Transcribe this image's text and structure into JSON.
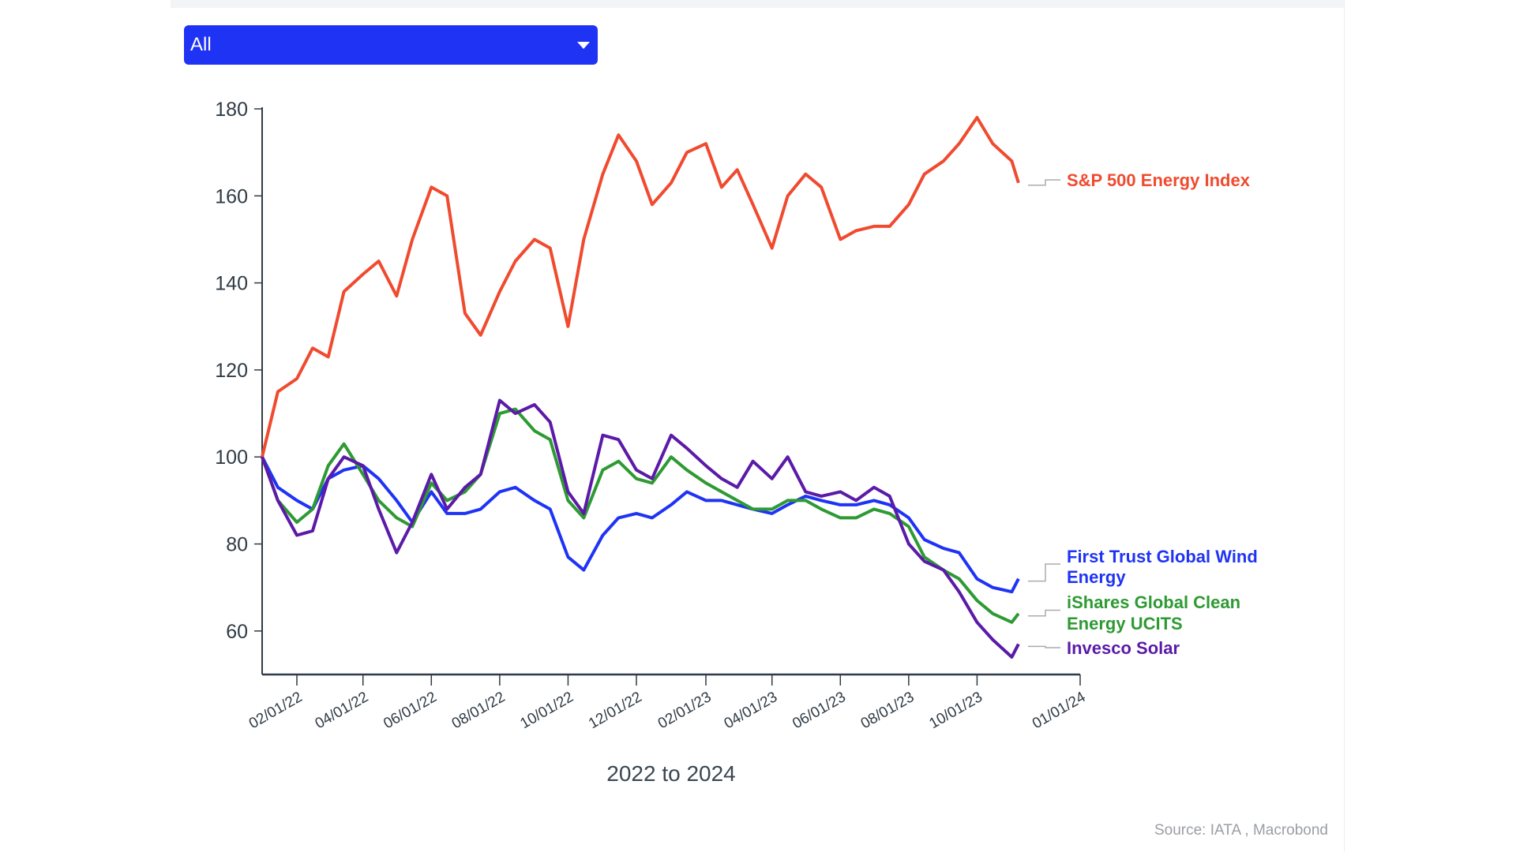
{
  "filter": {
    "selected": "All",
    "icon": "caret-down-icon"
  },
  "footer": {
    "source": "Source: IATA , Macrobond"
  },
  "chart_data": {
    "type": "line",
    "title": "",
    "xlabel": "2022 to 2024",
    "ylabel": "",
    "ylim": [
      50,
      180
    ],
    "yticks": [
      60,
      80,
      100,
      120,
      140,
      160,
      180
    ],
    "xlim": [
      "2022-01-01",
      "2024-01-01"
    ],
    "xticks": [
      "02/01/22",
      "04/01/22",
      "06/01/22",
      "08/01/22",
      "10/01/22",
      "12/01/22",
      "02/01/23",
      "04/01/23",
      "06/01/23",
      "08/01/23",
      "10/01/23",
      "01/01/24"
    ],
    "xtick_dates": [
      "2022-02-01",
      "2022-04-01",
      "2022-06-01",
      "2022-08-01",
      "2022-10-01",
      "2022-12-01",
      "2023-02-01",
      "2023-04-01",
      "2023-06-01",
      "2023-08-01",
      "2023-10-01",
      "2024-01-01"
    ],
    "grid": false,
    "legend": "right (end-of-line labels)",
    "x": [
      "2022-01-01",
      "2022-01-15",
      "2022-02-01",
      "2022-02-15",
      "2022-03-01",
      "2022-03-15",
      "2022-04-01",
      "2022-04-15",
      "2022-05-01",
      "2022-05-15",
      "2022-06-01",
      "2022-06-15",
      "2022-07-01",
      "2022-07-15",
      "2022-08-01",
      "2022-08-15",
      "2022-09-01",
      "2022-09-15",
      "2022-10-01",
      "2022-10-15",
      "2022-11-01",
      "2022-11-15",
      "2022-12-01",
      "2022-12-15",
      "2023-01-01",
      "2023-01-15",
      "2023-02-01",
      "2023-02-15",
      "2023-03-01",
      "2023-03-15",
      "2023-04-01",
      "2023-04-15",
      "2023-05-01",
      "2023-05-15",
      "2023-06-01",
      "2023-06-15",
      "2023-07-01",
      "2023-07-15",
      "2023-08-01",
      "2023-08-15",
      "2023-09-01",
      "2023-09-15",
      "2023-10-01",
      "2023-10-15",
      "2023-11-01",
      "2023-11-07"
    ],
    "series": [
      {
        "name": "S&P 500 Energy Index",
        "color": "#f04a2f",
        "values": [
          100,
          115,
          118,
          125,
          123,
          138,
          142,
          145,
          137,
          150,
          162,
          160,
          133,
          128,
          138,
          145,
          150,
          148,
          130,
          150,
          165,
          174,
          168,
          158,
          163,
          170,
          172,
          162,
          166,
          158,
          148,
          160,
          165,
          162,
          150,
          152,
          153,
          153,
          158,
          165,
          168,
          172,
          178,
          172,
          168,
          163
        ]
      },
      {
        "name": "First Trust Global Wind Energy",
        "color": "#1f33f5",
        "values": [
          100,
          93,
          90,
          88,
          95,
          97,
          98,
          95,
          90,
          85,
          92,
          87,
          87,
          88,
          92,
          93,
          90,
          88,
          77,
          74,
          82,
          86,
          87,
          86,
          89,
          92,
          90,
          90,
          89,
          88,
          87,
          89,
          91,
          90,
          89,
          89,
          90,
          89,
          86,
          81,
          79,
          78,
          72,
          70,
          69,
          72
        ]
      },
      {
        "name": "iShares Global Clean Energy UCITS",
        "color": "#2e9a33",
        "values": [
          100,
          90,
          85,
          88,
          98,
          103,
          96,
          90,
          86,
          84,
          94,
          90,
          92,
          96,
          110,
          111,
          106,
          104,
          90,
          86,
          97,
          99,
          95,
          94,
          100,
          97,
          94,
          92,
          90,
          88,
          88,
          90,
          90,
          88,
          86,
          86,
          88,
          87,
          84,
          77,
          74,
          72,
          67,
          64,
          62,
          64
        ]
      },
      {
        "name": "Invesco Solar",
        "color": "#5b1aa8",
        "values": [
          100,
          90,
          82,
          83,
          95,
          100,
          98,
          88,
          78,
          85,
          96,
          88,
          93,
          96,
          113,
          110,
          112,
          108,
          92,
          87,
          105,
          104,
          97,
          95,
          105,
          102,
          98,
          95,
          93,
          99,
          95,
          100,
          92,
          91,
          92,
          90,
          93,
          91,
          80,
          76,
          74,
          69,
          62,
          58,
          54,
          57
        ]
      }
    ]
  }
}
